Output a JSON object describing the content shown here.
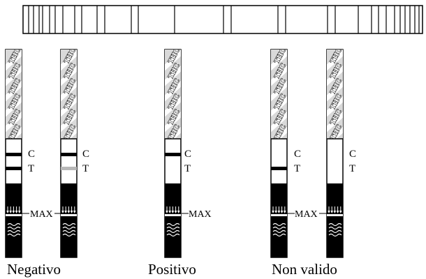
{
  "strip_text": "THC",
  "labels": {
    "control": "C",
    "test": "T",
    "max": "MAX"
  },
  "groups": [
    {
      "caption": "Negativo",
      "strips": [
        {
          "control_line": true,
          "test_line": "dark",
          "max_left": true,
          "max_right": true
        },
        {
          "control_line": true,
          "test_line": "faint",
          "max_left": false,
          "max_right": false
        }
      ]
    },
    {
      "caption": "Positivo",
      "strips": [
        {
          "control_line": true,
          "test_line": "none",
          "max_left": false,
          "max_right": true
        }
      ]
    },
    {
      "caption": "Non valido",
      "strips": [
        {
          "control_line": false,
          "test_line": "dark",
          "max_left": false,
          "max_right": true
        },
        {
          "control_line": false,
          "test_line": "none",
          "max_left": false,
          "max_right": false
        }
      ]
    }
  ],
  "colors": {
    "ink": "#000000",
    "faint_line": "#b8b8b8",
    "paper": "#ffffff"
  }
}
